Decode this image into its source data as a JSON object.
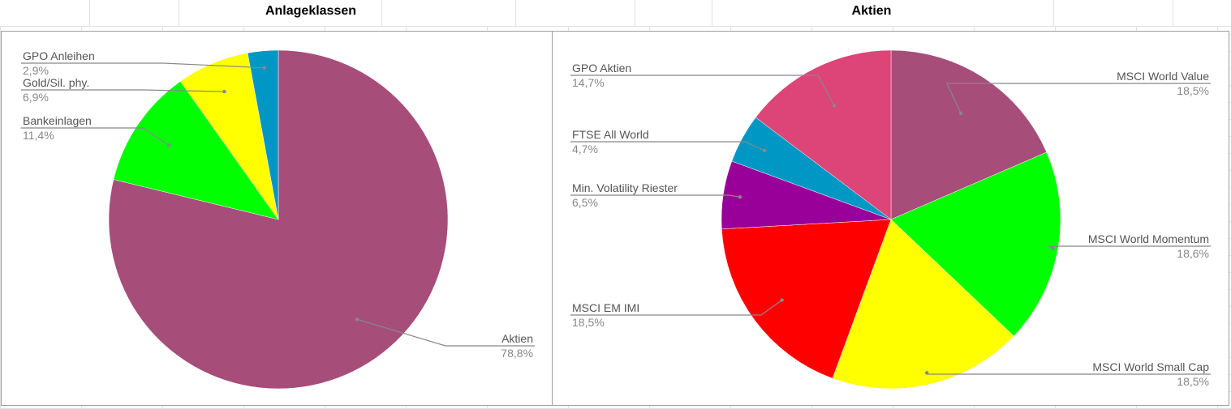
{
  "chart_data": [
    {
      "type": "pie",
      "title": "Anlageklassen",
      "slices": [
        {
          "label": "Aktien",
          "value": 78.8,
          "display": "78,8%",
          "color": "#a64d79"
        },
        {
          "label": "Bankeinlagen",
          "value": 11.4,
          "display": "11,4%",
          "color": "#00ff00"
        },
        {
          "label": "Gold/Sil. phy.",
          "value": 6.9,
          "display": "6,9%",
          "color": "#ffff00"
        },
        {
          "label": "GPO Anleihen",
          "value": 2.9,
          "display": "2,9%",
          "color": "#0097c4"
        }
      ]
    },
    {
      "type": "pie",
      "title": "Aktien",
      "slices": [
        {
          "label": "MSCI World Value",
          "value": 18.5,
          "display": "18,5%",
          "color": "#a64d79"
        },
        {
          "label": "MSCI World Momentum",
          "value": 18.6,
          "display": "18,6%",
          "color": "#00ff00"
        },
        {
          "label": "MSCI World Small Cap",
          "value": 18.5,
          "display": "18,5%",
          "color": "#ffff00"
        },
        {
          "label": "MSCI EM IMI",
          "value": 18.5,
          "display": "18,5%",
          "color": "#ff0000"
        },
        {
          "label": "Min. Volatility Riester",
          "value": 6.5,
          "display": "6,5%",
          "color": "#990099"
        },
        {
          "label": "FTSE All World",
          "value": 4.7,
          "display": "4,7%",
          "color": "#0097c4"
        },
        {
          "label": "GPO Aktien",
          "value": 14.7,
          "display": "14,7%",
          "color": "#dd4477"
        }
      ]
    }
  ]
}
